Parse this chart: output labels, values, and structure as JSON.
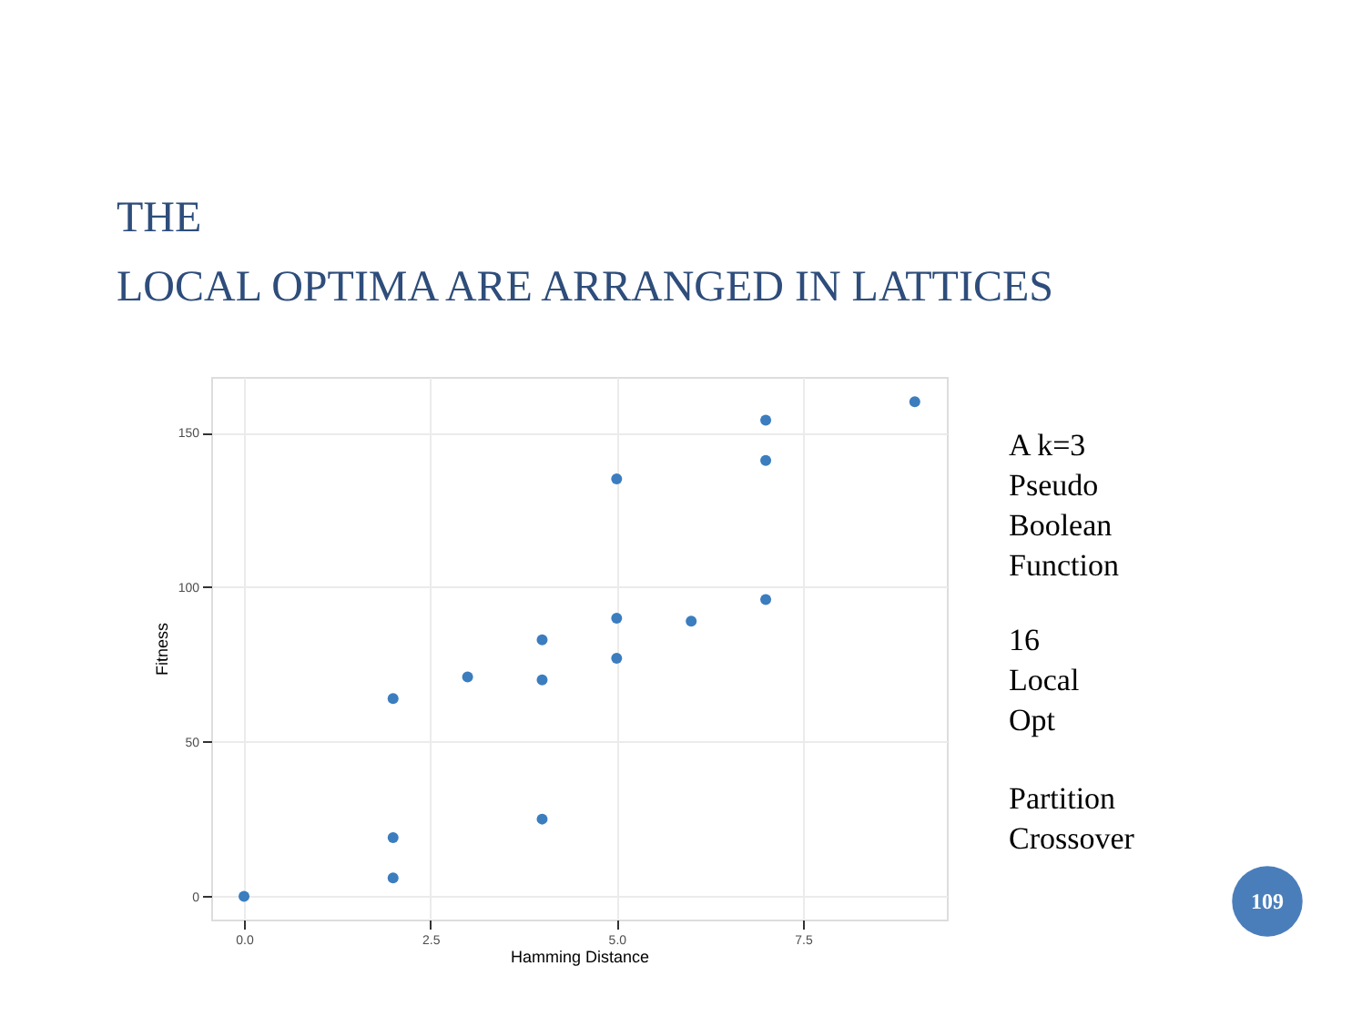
{
  "chart_data": {
    "type": "scatter",
    "title": "THE\nLOCAL OPTIMA ARE ARRANGED IN LATTICES",
    "xlabel": "Hamming Distance",
    "ylabel": "Fitness",
    "x": [
      0,
      2,
      2,
      2,
      3,
      4,
      4,
      4,
      5,
      5,
      5,
      6,
      7,
      7,
      7,
      9
    ],
    "series": [
      {
        "color": "#3b7dbf",
        "values": [
          0,
          6,
          19,
          64,
          71,
          25,
          70,
          83,
          77,
          90,
          135,
          89,
          96,
          141,
          154,
          160
        ]
      }
    ],
    "xlim": [
      -0.44,
      9.43
    ],
    "ylim": [
      -7.5,
      168
    ],
    "xticks": [
      {
        "value": 0,
        "label": "0.0"
      },
      2.5,
      {
        "value": 5,
        "label": "5.0"
      },
      7.5
    ],
    "yticks": [
      0,
      50,
      100,
      150
    ],
    "grid": true,
    "marker": "circle",
    "annotations": [
      "A k=3\nPseudo\nBoolean\nFunction",
      "16\nLocal\nOpt",
      "Partition\nCrossover",
      "109"
    ]
  }
}
